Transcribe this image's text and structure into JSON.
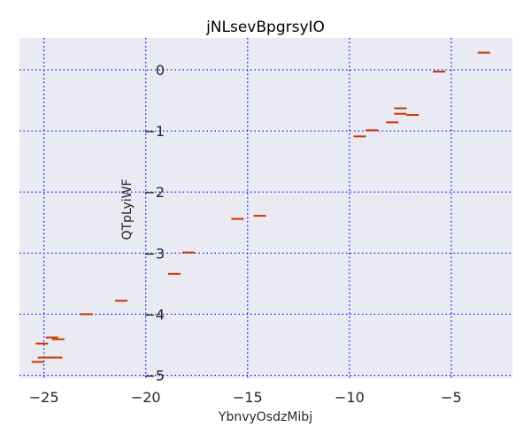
{
  "chart_data": {
    "type": "scatter",
    "title": "jNLsevBpgrsyIO",
    "xlabel": "YbnvyOsdzMibj",
    "ylabel": "QTpLyiWF",
    "xlim": [
      -26.2,
      -2.0
    ],
    "ylim": [
      -5.05,
      0.52
    ],
    "xticks": [
      -25,
      -20,
      -15,
      -10,
      -5
    ],
    "yticks": [
      0,
      -1,
      -2,
      -3,
      -4,
      -5
    ],
    "xtick_labels": [
      "−25",
      "−20",
      "−15",
      "−10",
      "−5"
    ],
    "ytick_labels": [
      "0",
      "−1",
      "−2",
      "−3",
      "−4",
      "−5"
    ],
    "grid": true,
    "marker": "hline",
    "colors": {
      "background": "#eaeaf2",
      "grid": "#0000ff",
      "marker": "#cc3300"
    },
    "points": [
      {
        "x": -3.4,
        "y": 0.28
      },
      {
        "x": -5.6,
        "y": -0.03
      },
      {
        "x": -7.5,
        "y": -0.63
      },
      {
        "x": -7.5,
        "y": -0.72
      },
      {
        "x": -6.9,
        "y": -0.74
      },
      {
        "x": -7.9,
        "y": -0.86
      },
      {
        "x": -8.9,
        "y": -0.99
      },
      {
        "x": -9.5,
        "y": -1.09
      },
      {
        "x": -14.4,
        "y": -2.39
      },
      {
        "x": -15.5,
        "y": -2.44
      },
      {
        "x": -17.9,
        "y": -2.99
      },
      {
        "x": -18.6,
        "y": -3.34
      },
      {
        "x": -21.2,
        "y": -3.78
      },
      {
        "x": -22.9,
        "y": -4.0
      },
      {
        "x": -24.6,
        "y": -4.38
      },
      {
        "x": -24.3,
        "y": -4.41
      },
      {
        "x": -25.1,
        "y": -4.48
      },
      {
        "x": -24.4,
        "y": -4.71
      },
      {
        "x": -25.0,
        "y": -4.71
      },
      {
        "x": -25.3,
        "y": -4.78
      }
    ]
  }
}
